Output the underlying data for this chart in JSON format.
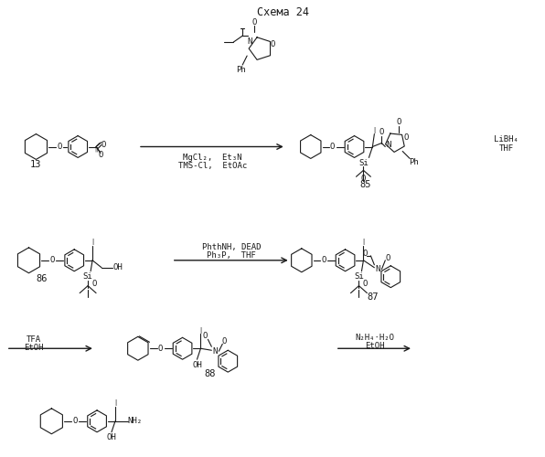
{
  "background_color": "#ffffff",
  "figsize": [
    5.96,
    5.0
  ],
  "dpi": 100,
  "title": "Схема 24",
  "reagents_r1_line1": "MgCl₂,  Et₃N",
  "reagents_r1_line2": "TMS-Cl,  EtOAc",
  "reagents_r1_right_line1": "LiBH₄",
  "reagents_r1_right_line2": "THF",
  "reagents_r2_line1": "PhthNH, DEAD",
  "reagents_r2_line2": "Ph₃P,  THF",
  "reagents_r3_left_line1": "TFA",
  "reagents_r3_left_line2": "EtOH",
  "reagents_r3_right_line1": "N₂H₄·H₂O",
  "reagents_r3_right_line2": "EtOH",
  "label_13": "13",
  "label_85": "85",
  "label_86": "86",
  "label_87": "87",
  "label_88": "88",
  "line_color": "#1a1a1a",
  "font_size_title": 8.5,
  "font_size_label": 7.5,
  "font_size_reagent": 6.5,
  "font_size_atom": 6.5,
  "font_size_small": 5.5
}
